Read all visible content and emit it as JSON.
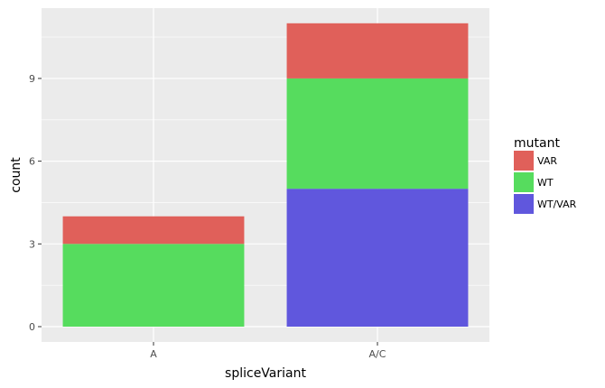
{
  "chart_data": {
    "type": "bar",
    "stacked": true,
    "categories": [
      "A",
      "A/C"
    ],
    "series": [
      {
        "name": "VAR",
        "values": [
          1,
          2
        ],
        "color": "#E0605A"
      },
      {
        "name": "WT",
        "values": [
          3,
          4
        ],
        "color": "#56DC5E"
      },
      {
        "name": "WT/VAR",
        "values": [
          0,
          5
        ],
        "color": "#6057DD"
      }
    ],
    "xlabel": "spliceVariant",
    "ylabel": "count",
    "ylim": [
      0,
      11.55
    ],
    "yticks": [
      0,
      3,
      6,
      9
    ],
    "grid": true,
    "legend": {
      "title": "mutant",
      "position": "right"
    },
    "background": "#EBEBEB"
  }
}
